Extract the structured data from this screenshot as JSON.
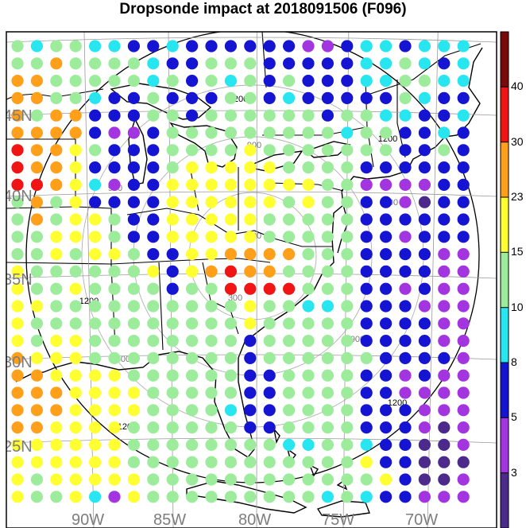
{
  "title": "Dropsonde impact at 2018091506 (F096)",
  "lat_labels": [
    "45N",
    "40N",
    "35N",
    "30N",
    "25N"
  ],
  "lon_labels": [
    "90W",
    "85W",
    "80W",
    "75W",
    "70W"
  ],
  "contour_labels": [
    "1200",
    "900",
    "600",
    "300"
  ],
  "colorbar": {
    "tick_labels": [
      "3",
      "5",
      "8",
      "10",
      "15",
      "23",
      "30",
      "40"
    ],
    "colors": [
      "#4b2a8c",
      "#a335e0",
      "#1414d2",
      "#28e6f0",
      "#9cec9c",
      "#ffff32",
      "#ff9f1a",
      "#f01414",
      "#7a0a0a"
    ]
  }
}
